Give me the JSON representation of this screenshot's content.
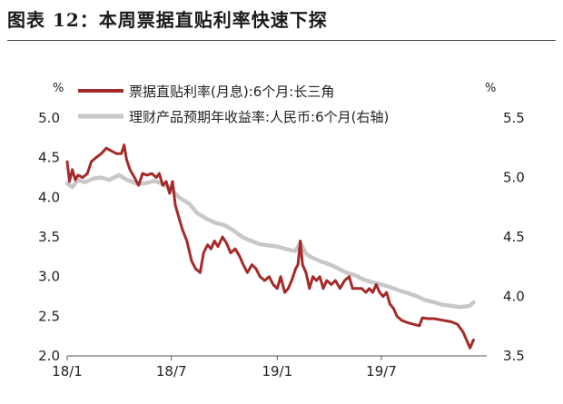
{
  "figure": {
    "title": "图表 12：本周票据直贴利率快速下探"
  },
  "chart_data": {
    "type": "line",
    "x_ticks": [
      "18/1",
      "18/7",
      "19/1",
      "19/7"
    ],
    "x_tick_dates": [
      "2018-01",
      "2018-07",
      "2019-01",
      "2019-07"
    ],
    "x_range": [
      "2018-01",
      "2019-12"
    ],
    "y_left": {
      "unit": "%",
      "range": [
        2.0,
        5.0
      ],
      "ticks": [
        "5.0",
        "4.5",
        "4.0",
        "3.5",
        "3.0",
        "2.5",
        "2.0"
      ]
    },
    "y_right": {
      "unit": "%",
      "range": [
        3.5,
        5.5
      ],
      "ticks": [
        "5.5",
        "5.0",
        "4.5",
        "4.0",
        "3.5"
      ]
    },
    "grid": false,
    "legend_position": "top",
    "series": [
      {
        "name": "票据直贴利率(月息):6个月:长三角",
        "axis": "left",
        "color": "#a52a2a",
        "points": [
          [
            "2018-01-01",
            4.45
          ],
          [
            "2018-01-05",
            4.2
          ],
          [
            "2018-01-10",
            4.35
          ],
          [
            "2018-01-15",
            4.22
          ],
          [
            "2018-01-20",
            4.28
          ],
          [
            "2018-01-28",
            4.25
          ],
          [
            "2018-02-05",
            4.3
          ],
          [
            "2018-02-12",
            4.45
          ],
          [
            "2018-02-20",
            4.5
          ],
          [
            "2018-03-01",
            4.55
          ],
          [
            "2018-03-10",
            4.62
          ],
          [
            "2018-03-20",
            4.58
          ],
          [
            "2018-03-28",
            4.55
          ],
          [
            "2018-04-05",
            4.55
          ],
          [
            "2018-04-10",
            4.66
          ],
          [
            "2018-04-14",
            4.48
          ],
          [
            "2018-04-20",
            4.35
          ],
          [
            "2018-04-28",
            4.25
          ],
          [
            "2018-05-05",
            4.15
          ],
          [
            "2018-05-12",
            4.3
          ],
          [
            "2018-05-20",
            4.28
          ],
          [
            "2018-05-28",
            4.3
          ],
          [
            "2018-06-05",
            4.25
          ],
          [
            "2018-06-10",
            4.3
          ],
          [
            "2018-06-16",
            4.15
          ],
          [
            "2018-06-22",
            4.2
          ],
          [
            "2018-06-28",
            4.05
          ],
          [
            "2018-07-03",
            4.2
          ],
          [
            "2018-07-08",
            3.9
          ],
          [
            "2018-07-14",
            3.75
          ],
          [
            "2018-07-20",
            3.6
          ],
          [
            "2018-07-28",
            3.45
          ],
          [
            "2018-08-05",
            3.2
          ],
          [
            "2018-08-12",
            3.1
          ],
          [
            "2018-08-20",
            3.05
          ],
          [
            "2018-08-26",
            3.3
          ],
          [
            "2018-09-02",
            3.4
          ],
          [
            "2018-09-08",
            3.35
          ],
          [
            "2018-09-14",
            3.45
          ],
          [
            "2018-09-20",
            3.38
          ],
          [
            "2018-09-28",
            3.5
          ],
          [
            "2018-10-05",
            3.42
          ],
          [
            "2018-10-12",
            3.3
          ],
          [
            "2018-10-20",
            3.35
          ],
          [
            "2018-10-28",
            3.25
          ],
          [
            "2018-11-03",
            3.15
          ],
          [
            "2018-11-10",
            3.05
          ],
          [
            "2018-11-18",
            3.15
          ],
          [
            "2018-11-25",
            3.1
          ],
          [
            "2018-12-02",
            3.0
          ],
          [
            "2018-12-10",
            2.95
          ],
          [
            "2018-12-18",
            3.0
          ],
          [
            "2018-12-25",
            2.9
          ],
          [
            "2019-01-01",
            2.85
          ],
          [
            "2019-01-07",
            3.0
          ],
          [
            "2019-01-14",
            2.8
          ],
          [
            "2019-01-20",
            2.85
          ],
          [
            "2019-01-26",
            2.95
          ],
          [
            "2019-02-02",
            3.1
          ],
          [
            "2019-02-06",
            3.15
          ],
          [
            "2019-02-10",
            3.45
          ],
          [
            "2019-02-14",
            3.15
          ],
          [
            "2019-02-20",
            3.05
          ],
          [
            "2019-02-26",
            2.85
          ],
          [
            "2019-03-04",
            3.0
          ],
          [
            "2019-03-10",
            2.95
          ],
          [
            "2019-03-16",
            3.0
          ],
          [
            "2019-03-22",
            2.85
          ],
          [
            "2019-03-28",
            2.95
          ],
          [
            "2019-04-05",
            2.9
          ],
          [
            "2019-04-12",
            2.95
          ],
          [
            "2019-04-20",
            2.85
          ],
          [
            "2019-04-28",
            2.95
          ],
          [
            "2019-05-06",
            3.0
          ],
          [
            "2019-05-12",
            2.85
          ],
          [
            "2019-05-20",
            2.85
          ],
          [
            "2019-05-28",
            2.85
          ],
          [
            "2019-06-04",
            2.8
          ],
          [
            "2019-06-10",
            2.85
          ],
          [
            "2019-06-16",
            2.8
          ],
          [
            "2019-06-22",
            2.9
          ],
          [
            "2019-06-28",
            2.8
          ],
          [
            "2019-07-04",
            2.75
          ],
          [
            "2019-07-10",
            2.8
          ],
          [
            "2019-07-16",
            2.65
          ],
          [
            "2019-07-22",
            2.6
          ],
          [
            "2019-07-28",
            2.5
          ],
          [
            "2019-08-05",
            2.45
          ],
          [
            "2019-08-15",
            2.42
          ],
          [
            "2019-08-25",
            2.4
          ],
          [
            "2019-09-05",
            2.38
          ],
          [
            "2019-09-10",
            2.48
          ],
          [
            "2019-09-20",
            2.47
          ],
          [
            "2019-10-01",
            2.47
          ],
          [
            "2019-10-15",
            2.45
          ],
          [
            "2019-10-30",
            2.43
          ],
          [
            "2019-11-10",
            2.4
          ],
          [
            "2019-11-20",
            2.3
          ],
          [
            "2019-11-26",
            2.2
          ],
          [
            "2019-12-02",
            2.1
          ],
          [
            "2019-12-08",
            2.2
          ]
        ]
      },
      {
        "name": "理财产品预期年收益率:人民币:6个月(右轴)",
        "axis": "right",
        "color": "#c8c8c8",
        "points": [
          [
            "2018-01-01",
            4.95
          ],
          [
            "2018-01-10",
            4.92
          ],
          [
            "2018-01-20",
            4.98
          ],
          [
            "2018-02-01",
            4.96
          ],
          [
            "2018-02-15",
            4.99
          ],
          [
            "2018-03-01",
            5.0
          ],
          [
            "2018-03-15",
            4.98
          ],
          [
            "2018-04-01",
            5.02
          ],
          [
            "2018-04-15",
            4.98
          ],
          [
            "2018-05-01",
            4.95
          ],
          [
            "2018-05-15",
            4.95
          ],
          [
            "2018-06-01",
            4.97
          ],
          [
            "2018-06-15",
            4.95
          ],
          [
            "2018-07-01",
            4.9
          ],
          [
            "2018-07-15",
            4.83
          ],
          [
            "2018-08-01",
            4.78
          ],
          [
            "2018-08-15",
            4.7
          ],
          [
            "2018-09-01",
            4.65
          ],
          [
            "2018-09-15",
            4.62
          ],
          [
            "2018-10-01",
            4.6
          ],
          [
            "2018-10-15",
            4.56
          ],
          [
            "2018-11-01",
            4.5
          ],
          [
            "2018-11-15",
            4.47
          ],
          [
            "2018-12-01",
            4.44
          ],
          [
            "2018-12-15",
            4.43
          ],
          [
            "2019-01-01",
            4.42
          ],
          [
            "2019-01-15",
            4.4
          ],
          [
            "2019-02-01",
            4.38
          ],
          [
            "2019-02-10",
            4.45
          ],
          [
            "2019-02-20",
            4.36
          ],
          [
            "2019-03-01",
            4.33
          ],
          [
            "2019-03-15",
            4.3
          ],
          [
            "2019-04-01",
            4.27
          ],
          [
            "2019-04-15",
            4.24
          ],
          [
            "2019-05-01",
            4.2
          ],
          [
            "2019-05-15",
            4.18
          ],
          [
            "2019-06-01",
            4.14
          ],
          [
            "2019-06-15",
            4.12
          ],
          [
            "2019-07-01",
            4.1
          ],
          [
            "2019-07-15",
            4.08
          ],
          [
            "2019-08-01",
            4.05
          ],
          [
            "2019-08-15",
            4.03
          ],
          [
            "2019-09-01",
            4.0
          ],
          [
            "2019-09-15",
            3.97
          ],
          [
            "2019-10-01",
            3.95
          ],
          [
            "2019-10-15",
            3.93
          ],
          [
            "2019-11-01",
            3.92
          ],
          [
            "2019-11-15",
            3.91
          ],
          [
            "2019-12-01",
            3.92
          ],
          [
            "2019-12-08",
            3.95
          ]
        ]
      }
    ]
  }
}
